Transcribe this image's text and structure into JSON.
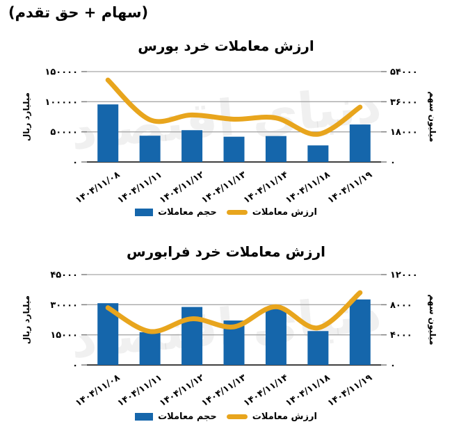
{
  "header": {
    "note": "(سهام + حق تقدم)"
  },
  "watermark_text": "دنیای اقتصاد",
  "colors": {
    "bar": "#1566AB",
    "line": "#E8A51D",
    "grid": "#A8A8A8",
    "axis_line": "#3F3F3F",
    "tick": "#808080",
    "text": "#000000"
  },
  "legend": {
    "volume_label": "حجم معاملات",
    "value_label": "ارزش معاملات"
  },
  "chart_data": [
    {
      "type": "bar+line",
      "title": "ارزش معاملات خرد بورس",
      "categories": [
        "۱۴۰۴/۱۱/۰۸",
        "۱۴۰۴/۱۱/۱۱",
        "۱۴۰۴/۱۱/۱۲",
        "۱۴۰۴/۱۱/۱۳",
        "۱۴۰۴/۱۱/۱۴",
        "۱۴۰۴/۱۱/۱۸",
        "۱۴۰۴/۱۱/۱۹"
      ],
      "series": [
        {
          "name": "حجم معاملات",
          "type": "bar",
          "axis": "right",
          "values": [
            34400,
            15700,
            19000,
            15100,
            15500,
            9900,
            22400
          ]
        },
        {
          "name": "ارزش معاملات",
          "type": "line",
          "axis": "left",
          "values": [
            136000,
            70000,
            78000,
            71000,
            73000,
            46000,
            91000
          ]
        }
      ],
      "left_axis": {
        "title": "میلیارد ریال",
        "max": 150000,
        "ticks": [
          "۱۵۰۰۰۰",
          "۱۰۰۰۰۰",
          "۵۰۰۰۰",
          "۰"
        ],
        "tick_values": [
          150000,
          100000,
          50000,
          0
        ]
      },
      "right_axis": {
        "title": "میلیون سهم",
        "max": 54000,
        "ticks": [
          "۵۴۰۰۰",
          "۳۶۰۰۰",
          "۱۸۰۰۰",
          "۰"
        ],
        "tick_values": [
          54000,
          36000,
          18000,
          0
        ]
      },
      "grid": "horizontal",
      "legend_position": "bottom"
    },
    {
      "type": "bar+line",
      "title": "ارزش معاملات خرد فرابورس",
      "categories": [
        "۱۴۰۴/۱۱/۰۸",
        "۱۴۰۴/۱۱/۱۱",
        "۱۴۰۴/۱۱/۱۲",
        "۱۴۰۴/۱۱/۱۳",
        "۱۴۰۴/۱۱/۱۴",
        "۱۴۰۴/۱۱/۱۸",
        "۱۴۰۴/۱۱/۱۹"
      ],
      "series": [
        {
          "name": "حجم معاملات",
          "type": "bar",
          "axis": "right",
          "values": [
            8200,
            4350,
            7700,
            5900,
            7500,
            4500,
            8700
          ]
        },
        {
          "name": "ارزش معاملات",
          "type": "line",
          "axis": "left",
          "values": [
            28500,
            16700,
            23000,
            19000,
            29000,
            18500,
            36000
          ]
        }
      ],
      "left_axis": {
        "title": "میلیارد ریال",
        "max": 45000,
        "ticks": [
          "۴۵۰۰۰",
          "۳۰۰۰۰",
          "۱۵۰۰۰",
          "۰"
        ],
        "tick_values": [
          45000,
          30000,
          15000,
          0
        ]
      },
      "right_axis": {
        "title": "میلیون سهم",
        "max": 12000,
        "ticks": [
          "۱۲۰۰۰",
          "۸۰۰۰",
          "۴۰۰۰",
          "۰"
        ],
        "tick_values": [
          12000,
          8000,
          4000,
          0
        ]
      },
      "grid": "horizontal",
      "legend_position": "bottom"
    }
  ]
}
